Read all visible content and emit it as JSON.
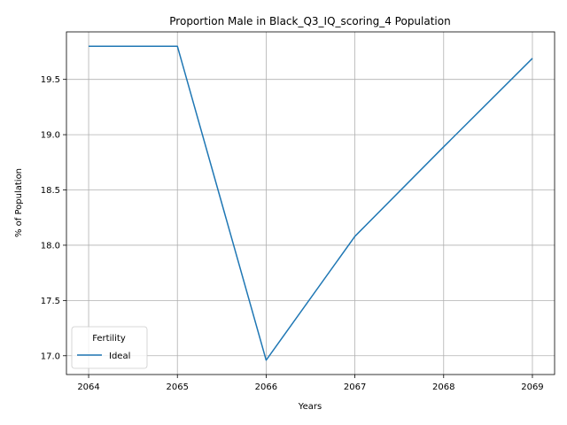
{
  "chart_data": {
    "type": "line",
    "title": "Proportion Male in Black_Q3_IQ_scoring_4 Population",
    "xlabel": "Years",
    "ylabel": "% of Population",
    "x": [
      2064,
      2065,
      2066,
      2067,
      2068,
      2069
    ],
    "series": [
      {
        "name": "Ideal",
        "values": [
          19.8,
          19.8,
          16.96,
          18.08,
          18.89,
          19.69
        ]
      }
    ],
    "xlim": [
      2063.75,
      2069.25
    ],
    "ylim": [
      16.83,
      19.93
    ],
    "xticks": [
      "2064",
      "2065",
      "2066",
      "2067",
      "2068",
      "2069"
    ],
    "yticks": [
      "17.0",
      "17.5",
      "18.0",
      "18.5",
      "19.0",
      "19.5"
    ],
    "grid": true,
    "legend": {
      "title": "Fertility",
      "position": "lower-left"
    },
    "colors": {
      "series": "#1f77b4",
      "grid": "#b0b0b0",
      "axes": "#000000"
    }
  }
}
